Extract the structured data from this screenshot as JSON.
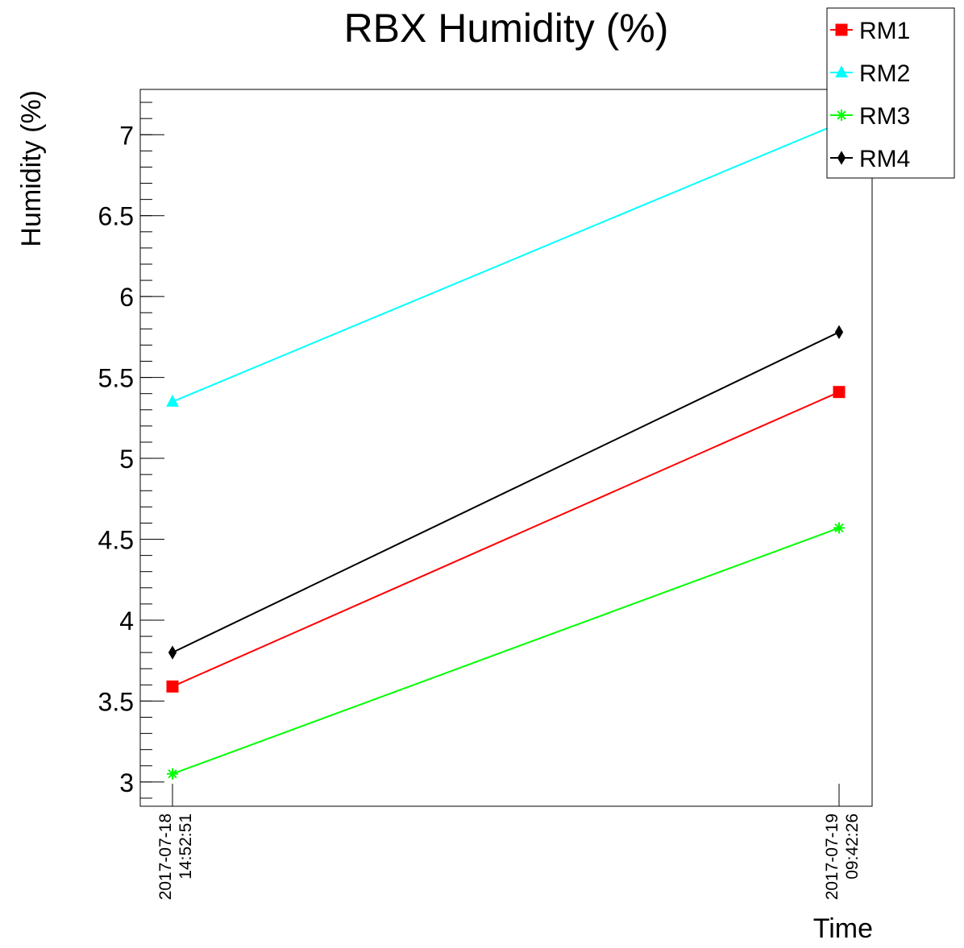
{
  "chart_data": {
    "type": "line",
    "title": "RBX Humidity (%)",
    "xlabel": "Time",
    "ylabel": "Humidity (%)",
    "x": [
      "2017-07-18 14:52:51",
      "2017-07-19 09:42:26"
    ],
    "x_tick_labels": [
      {
        "date": "2017-07-18",
        "time": "14:52:51"
      },
      {
        "date": "2017-07-19",
        "time": "09:42:26"
      }
    ],
    "ylim": [
      2.85,
      7.28
    ],
    "yticks": [
      "3",
      "3.5",
      "4",
      "4.5",
      "5",
      "5.5",
      "6",
      "6.5",
      "7"
    ],
    "ytick_values": [
      3,
      3.5,
      4,
      4.5,
      5,
      5.5,
      6,
      6.5,
      7
    ],
    "grid": false,
    "legend_position": "top-right",
    "series": [
      {
        "name": "RM1",
        "color": "#ff0000",
        "marker": "square",
        "values": [
          3.59,
          5.41
        ]
      },
      {
        "name": "RM2",
        "color": "#00ffff",
        "marker": "triangle",
        "values": [
          5.35,
          7.07
        ]
      },
      {
        "name": "RM3",
        "color": "#00ff00",
        "marker": "star",
        "values": [
          3.05,
          4.57
        ]
      },
      {
        "name": "RM4",
        "color": "#000000",
        "marker": "diamond",
        "values": [
          3.8,
          5.78
        ]
      }
    ]
  }
}
